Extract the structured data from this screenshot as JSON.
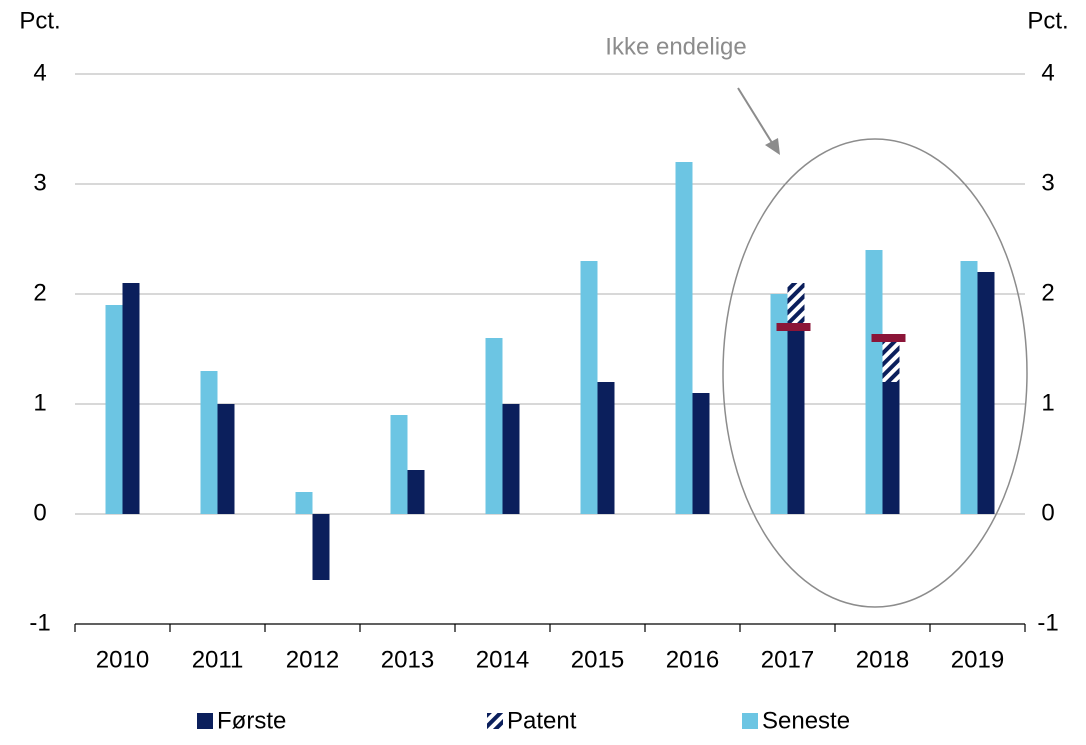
{
  "chart_data": {
    "type": "bar",
    "y_label_left": "Pct.",
    "y_label_right": "Pct.",
    "annotation": "Ikke endelige",
    "categories": [
      "2010",
      "2011",
      "2012",
      "2013",
      "2014",
      "2015",
      "2016",
      "2017",
      "2018",
      "2019"
    ],
    "series": [
      {
        "name": "Seneste",
        "color": "#6cc5e3",
        "values": [
          1.9,
          1.3,
          0.2,
          0.9,
          1.6,
          2.3,
          3.2,
          2.0,
          2.4,
          2.3
        ]
      },
      {
        "name": "Første",
        "color": "#0b1f5c",
        "values": [
          2.1,
          1.0,
          -0.6,
          0.4,
          1.0,
          1.2,
          1.1,
          1.7,
          1.2,
          2.2
        ]
      },
      {
        "name": "Patent",
        "color": "#0b1f5c",
        "values": [
          null,
          null,
          null,
          null,
          null,
          null,
          null,
          0.4,
          0.4,
          null
        ]
      }
    ],
    "markers": {
      "color": "#8b1538",
      "values": [
        null,
        null,
        null,
        null,
        null,
        null,
        null,
        1.7,
        1.6,
        null
      ]
    },
    "ylim": [
      -1,
      4
    ],
    "yticks": [
      -1,
      0,
      1,
      2,
      3,
      4
    ],
    "grid": true
  }
}
